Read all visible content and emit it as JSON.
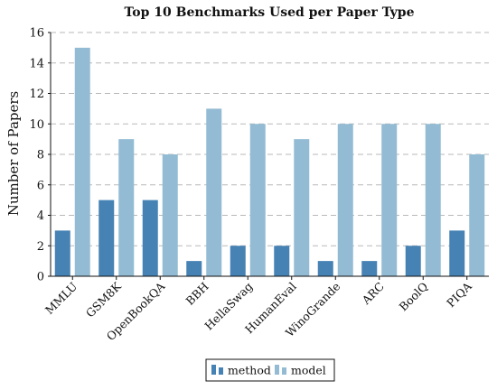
{
  "chart_data": {
    "type": "bar",
    "title": "Top 10 Benchmarks Used per Paper Type",
    "xlabel": "",
    "ylabel": "Number of Papers",
    "categories": [
      "MMLU",
      "GSM8K",
      "OpenBookQA",
      "BBH",
      "HellaSwag",
      "HumanEval",
      "WinoGrande",
      "ARC",
      "BoolQ",
      "PIQA"
    ],
    "series": [
      {
        "name": "method",
        "color": "#4682b4",
        "values": [
          3,
          5,
          5,
          1,
          2,
          2,
          1,
          1,
          2,
          3
        ]
      },
      {
        "name": "model",
        "color": "#93bcd4",
        "values": [
          15,
          9,
          8,
          11,
          10,
          9,
          10,
          10,
          10,
          8
        ]
      }
    ],
    "ylim": [
      0,
      16
    ],
    "yticks": [
      0,
      2,
      4,
      6,
      8,
      10,
      12,
      14,
      16
    ],
    "grid": "horizontal dashed",
    "legend": "bottom-center"
  }
}
